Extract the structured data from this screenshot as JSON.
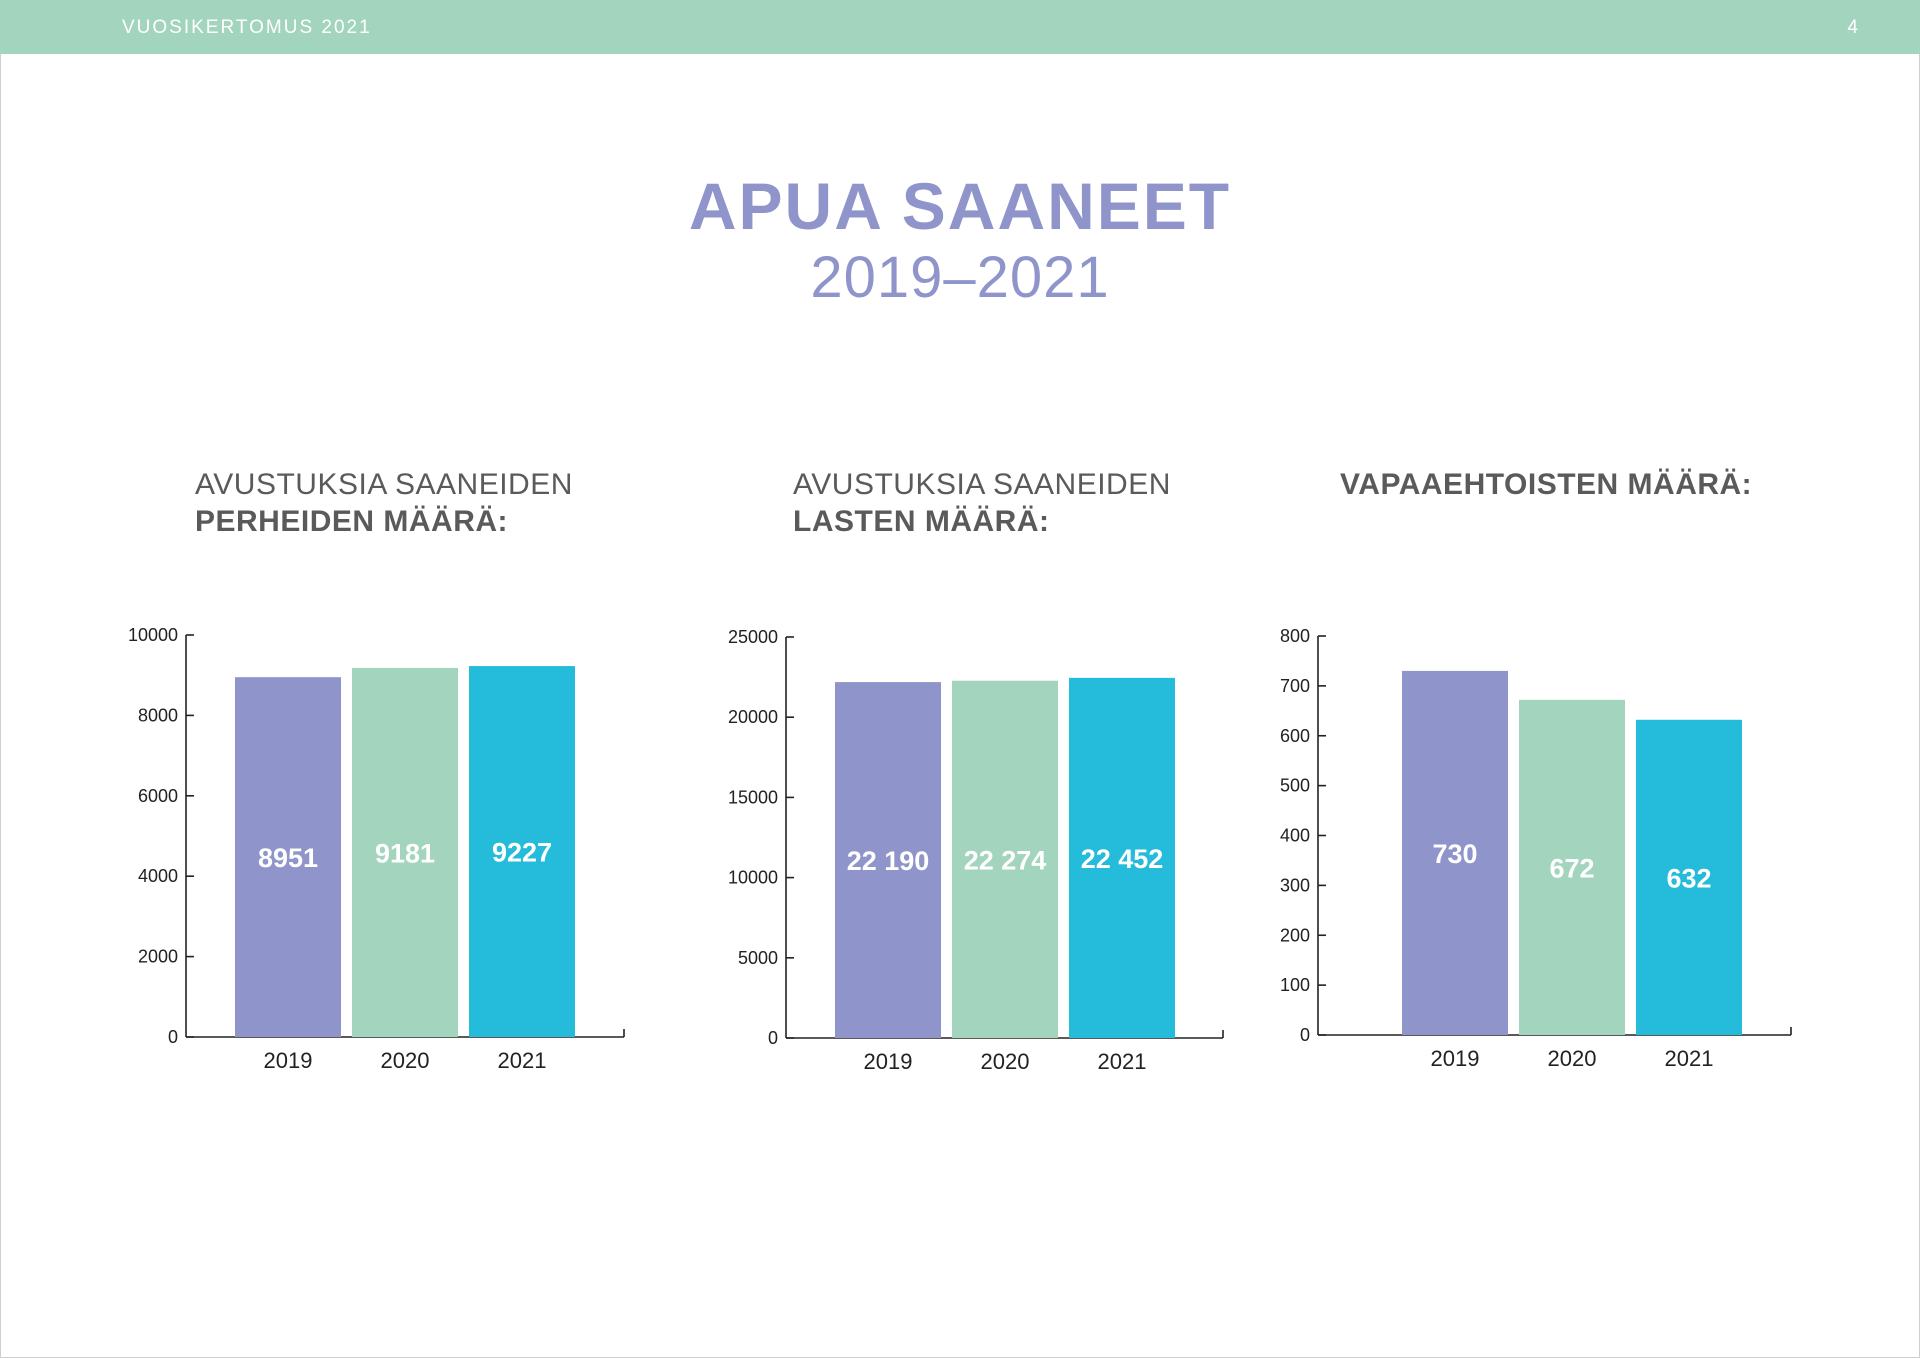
{
  "header": {
    "title": "VUOSIKERTOMUS  2021",
    "page_number": "4"
  },
  "main": {
    "title": "APUA SAANEET",
    "subtitle": "2019–2021"
  },
  "colors": {
    "header": "#a3d4bd",
    "title": "#8f95cb",
    "bar_2019": "#8f95cb",
    "bar_2020": "#a3d4bd",
    "bar_2021": "#25bbda"
  },
  "chart_data": [
    {
      "type": "bar",
      "title_light": "AVUSTUKSIA SAANEIDEN",
      "title_bold": "PERHEIDEN MÄÄRÄ:",
      "categories": [
        "2019",
        "2020",
        "2021"
      ],
      "values": [
        8951,
        9181,
        9227
      ],
      "value_labels": [
        "8951",
        "9181",
        "9227"
      ],
      "yticks": [
        "0",
        "2000",
        "4000",
        "6000",
        "8000",
        "10000"
      ],
      "ylim": [
        0,
        10000
      ]
    },
    {
      "type": "bar",
      "title_light": "AVUSTUKSIA SAANEIDEN",
      "title_bold": "LASTEN MÄÄRÄ:",
      "categories": [
        "2019",
        "2020",
        "2021"
      ],
      "values": [
        22190,
        22274,
        22452
      ],
      "value_labels": [
        "22 190",
        "22 274",
        "22 452"
      ],
      "yticks": [
        "0",
        "5000",
        "10000",
        "15000",
        "20000",
        "25000"
      ],
      "ylim": [
        0,
        25000
      ]
    },
    {
      "type": "bar",
      "title_light": "",
      "title_bold": "VAPAAEHTOISTEN MÄÄRÄ:",
      "categories": [
        "2019",
        "2020",
        "2021"
      ],
      "values": [
        730,
        672,
        632
      ],
      "value_labels": [
        "730",
        "672",
        "632"
      ],
      "yticks": [
        "0",
        "100",
        "200",
        "300",
        "400",
        "500",
        "600",
        "700",
        "800"
      ],
      "ylim": [
        0,
        800
      ]
    }
  ]
}
